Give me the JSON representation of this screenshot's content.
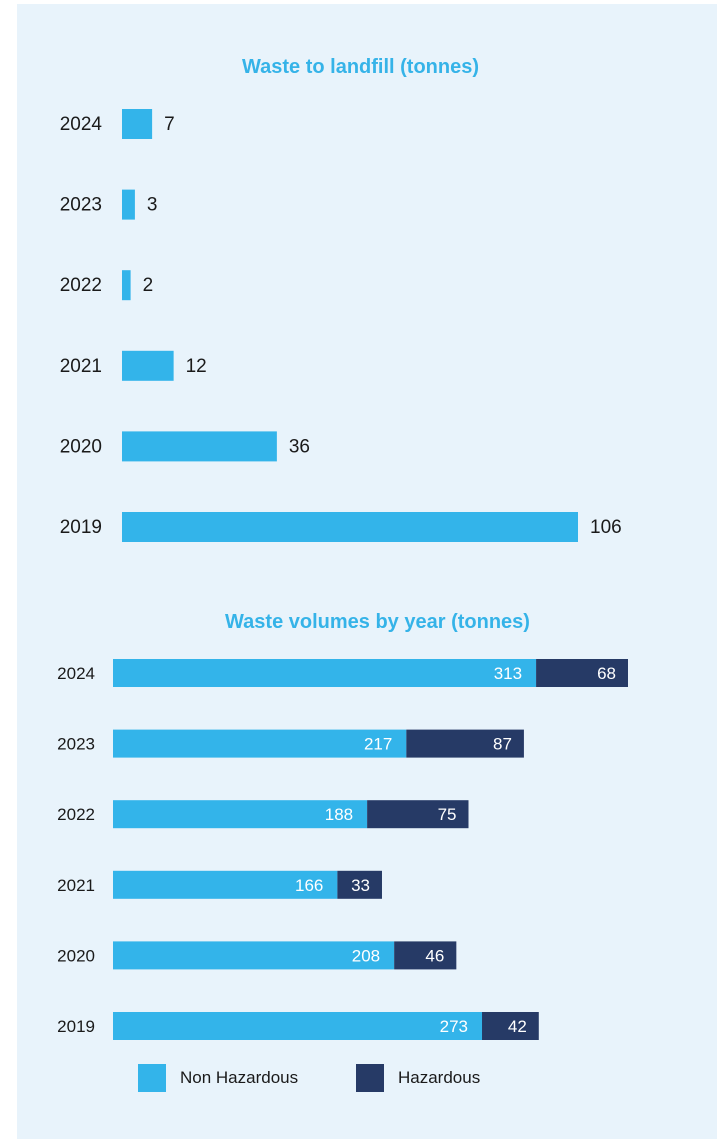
{
  "colors": {
    "panel_bg": "#e8f3fb",
    "non_hazardous": "#33b4ea",
    "hazardous": "#263a66",
    "title": "#35b3e8",
    "text": "#1a1a1a"
  },
  "chart_data": [
    {
      "type": "bar",
      "orientation": "horizontal",
      "title": "Waste to landfill (tonnes)",
      "categories": [
        "2024",
        "2023",
        "2022",
        "2021",
        "2020",
        "2019"
      ],
      "values": [
        7,
        3,
        2,
        12,
        36,
        106
      ],
      "xlim": [
        0,
        106
      ],
      "grid": false
    },
    {
      "type": "bar",
      "orientation": "horizontal",
      "stacked": true,
      "title": "Waste volumes by year (tonnes)",
      "categories": [
        "2024",
        "2023",
        "2022",
        "2021",
        "2020",
        "2019"
      ],
      "series": [
        {
          "name": "Non Hazardous",
          "values": [
            313,
            217,
            188,
            166,
            208,
            273
          ]
        },
        {
          "name": "Hazardous",
          "values": [
            68,
            87,
            75,
            33,
            46,
            42
          ]
        }
      ],
      "xlim": [
        0,
        381
      ],
      "grid": false,
      "legend": "bottom"
    }
  ],
  "legend": {
    "non_hazardous_label": "Non Hazardous",
    "hazardous_label": "Hazardous"
  }
}
